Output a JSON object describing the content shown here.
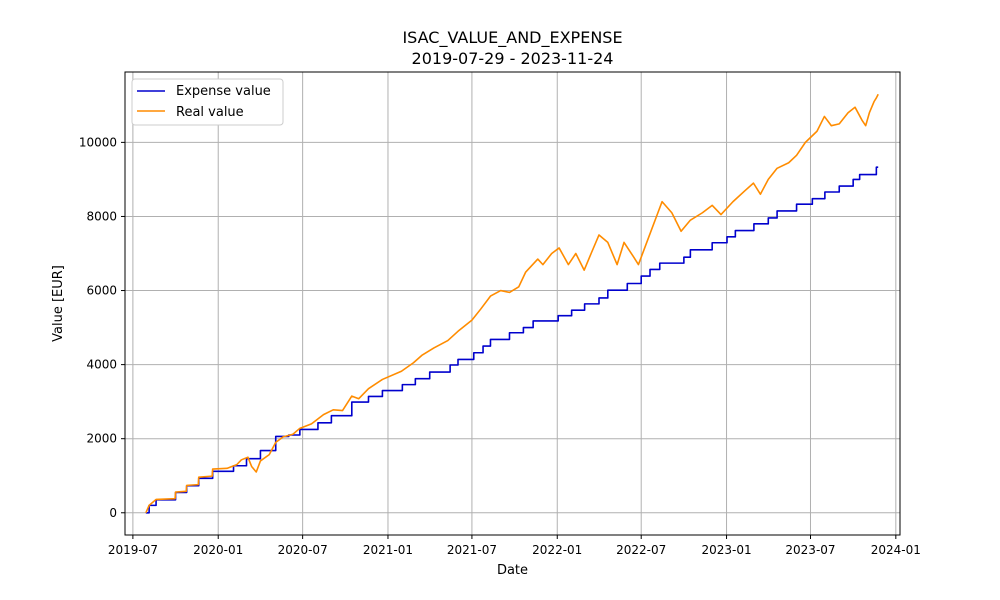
{
  "chart_data": {
    "type": "line",
    "title": "ISAC_VALUE_AND_EXPENSE",
    "subtitle": "2019-07-29 - 2023-11-24",
    "xlabel": "Date",
    "ylabel": "Value [EUR]",
    "xlim": [
      "2019-06-14",
      "2024-01-10"
    ],
    "ylim": [
      -600,
      11900
    ],
    "x_ticks": [
      "2019-07-01",
      "2020-01-01",
      "2020-07-01",
      "2021-01-01",
      "2021-07-01",
      "2022-01-01",
      "2022-07-01",
      "2023-01-01",
      "2023-07-01",
      "2024-01-01"
    ],
    "x_tick_labels": [
      "2019-07",
      "2020-01",
      "2020-07",
      "2021-01",
      "2021-07",
      "2022-01",
      "2022-07",
      "2023-01",
      "2023-07",
      "2024-01"
    ],
    "y_ticks": [
      0,
      2000,
      4000,
      6000,
      8000,
      10000
    ],
    "y_tick_labels": [
      "0",
      "2000",
      "4000",
      "6000",
      "8000",
      "10000"
    ],
    "grid": true,
    "legend_position": "top-left",
    "series": [
      {
        "name": "Expense value",
        "color": "#0000cd",
        "step": true,
        "points": [
          [
            "2019-07-29",
            0
          ],
          [
            "2019-08-05",
            200
          ],
          [
            "2019-08-20",
            350
          ],
          [
            "2019-10-01",
            550
          ],
          [
            "2019-10-25",
            730
          ],
          [
            "2019-11-20",
            930
          ],
          [
            "2019-12-20",
            1120
          ],
          [
            "2020-02-03",
            1270
          ],
          [
            "2020-03-02",
            1460
          ],
          [
            "2020-04-01",
            1680
          ],
          [
            "2020-05-04",
            2060
          ],
          [
            "2020-06-01",
            2100
          ],
          [
            "2020-06-25",
            2250
          ],
          [
            "2020-08-03",
            2430
          ],
          [
            "2020-09-01",
            2620
          ],
          [
            "2020-10-15",
            2990
          ],
          [
            "2020-11-20",
            3140
          ],
          [
            "2020-12-20",
            3300
          ],
          [
            "2021-02-01",
            3460
          ],
          [
            "2021-03-01",
            3620
          ],
          [
            "2021-04-01",
            3800
          ],
          [
            "2021-05-15",
            3990
          ],
          [
            "2021-06-01",
            4140
          ],
          [
            "2021-07-05",
            4320
          ],
          [
            "2021-07-25",
            4500
          ],
          [
            "2021-08-10",
            4680
          ],
          [
            "2021-09-20",
            4860
          ],
          [
            "2021-10-20",
            5000
          ],
          [
            "2021-11-10",
            5180
          ],
          [
            "2022-01-03",
            5320
          ],
          [
            "2022-02-01",
            5470
          ],
          [
            "2022-03-01",
            5640
          ],
          [
            "2022-04-01",
            5800
          ],
          [
            "2022-04-20",
            6010
          ],
          [
            "2022-06-01",
            6190
          ],
          [
            "2022-07-01",
            6390
          ],
          [
            "2022-07-20",
            6570
          ],
          [
            "2022-08-10",
            6740
          ],
          [
            "2022-10-01",
            6900
          ],
          [
            "2022-10-15",
            7100
          ],
          [
            "2022-12-01",
            7290
          ],
          [
            "2023-01-02",
            7450
          ],
          [
            "2023-01-20",
            7620
          ],
          [
            "2023-03-01",
            7800
          ],
          [
            "2023-04-01",
            7960
          ],
          [
            "2023-04-20",
            8150
          ],
          [
            "2023-06-01",
            8330
          ],
          [
            "2023-07-05",
            8480
          ],
          [
            "2023-08-01",
            8660
          ],
          [
            "2023-09-01",
            8820
          ],
          [
            "2023-10-01",
            9000
          ],
          [
            "2023-10-15",
            9130
          ],
          [
            "2023-11-20",
            9330
          ],
          [
            "2023-11-24",
            9330
          ]
        ]
      },
      {
        "name": "Real value",
        "color": "#ff8c00",
        "step": false,
        "points": [
          [
            "2019-07-29",
            0
          ],
          [
            "2019-08-05",
            200
          ],
          [
            "2019-08-20",
            360
          ],
          [
            "2019-09-30",
            380
          ],
          [
            "2019-10-01",
            560
          ],
          [
            "2019-10-24",
            580
          ],
          [
            "2019-10-25",
            740
          ],
          [
            "2019-11-19",
            760
          ],
          [
            "2019-11-20",
            960
          ],
          [
            "2019-12-19",
            990
          ],
          [
            "2019-12-20",
            1180
          ],
          [
            "2020-01-20",
            1200
          ],
          [
            "2020-02-10",
            1300
          ],
          [
            "2020-02-20",
            1430
          ],
          [
            "2020-03-05",
            1500
          ],
          [
            "2020-03-13",
            1250
          ],
          [
            "2020-03-23",
            1100
          ],
          [
            "2020-04-01",
            1400
          ],
          [
            "2020-04-20",
            1570
          ],
          [
            "2020-05-04",
            1900
          ],
          [
            "2020-05-20",
            2050
          ],
          [
            "2020-06-10",
            2120
          ],
          [
            "2020-06-25",
            2280
          ],
          [
            "2020-07-20",
            2400
          ],
          [
            "2020-08-15",
            2650
          ],
          [
            "2020-09-05",
            2780
          ],
          [
            "2020-09-25",
            2760
          ],
          [
            "2020-10-15",
            3150
          ],
          [
            "2020-10-30",
            3080
          ],
          [
            "2020-11-20",
            3350
          ],
          [
            "2020-12-20",
            3600
          ],
          [
            "2021-01-30",
            3820
          ],
          [
            "2021-02-25",
            4050
          ],
          [
            "2021-03-15",
            4250
          ],
          [
            "2021-04-10",
            4450
          ],
          [
            "2021-05-10",
            4650
          ],
          [
            "2021-06-01",
            4900
          ],
          [
            "2021-07-01",
            5200
          ],
          [
            "2021-07-20",
            5500
          ],
          [
            "2021-08-10",
            5850
          ],
          [
            "2021-09-01",
            6000
          ],
          [
            "2021-09-20",
            5950
          ],
          [
            "2021-10-10",
            6100
          ],
          [
            "2021-10-25",
            6500
          ],
          [
            "2021-11-20",
            6850
          ],
          [
            "2021-12-01",
            6700
          ],
          [
            "2021-12-20",
            7000
          ],
          [
            "2022-01-05",
            7150
          ],
          [
            "2022-01-25",
            6700
          ],
          [
            "2022-02-10",
            7000
          ],
          [
            "2022-02-28",
            6550
          ],
          [
            "2022-03-15",
            7000
          ],
          [
            "2022-04-01",
            7500
          ],
          [
            "2022-04-20",
            7300
          ],
          [
            "2022-05-10",
            6700
          ],
          [
            "2022-05-25",
            7300
          ],
          [
            "2022-06-15",
            6900
          ],
          [
            "2022-06-25",
            6700
          ],
          [
            "2022-07-10",
            7200
          ],
          [
            "2022-08-15",
            8400
          ],
          [
            "2022-09-05",
            8100
          ],
          [
            "2022-09-25",
            7600
          ],
          [
            "2022-10-15",
            7900
          ],
          [
            "2022-11-10",
            8100
          ],
          [
            "2022-12-01",
            8300
          ],
          [
            "2022-12-20",
            8050
          ],
          [
            "2023-01-15",
            8400
          ],
          [
            "2023-02-10",
            8700
          ],
          [
            "2023-02-28",
            8900
          ],
          [
            "2023-03-15",
            8600
          ],
          [
            "2023-04-01",
            9000
          ],
          [
            "2023-04-20",
            9300
          ],
          [
            "2023-05-15",
            9450
          ],
          [
            "2023-06-01",
            9650
          ],
          [
            "2023-06-20",
            10000
          ],
          [
            "2023-07-15",
            10300
          ],
          [
            "2023-07-31",
            10700
          ],
          [
            "2023-08-15",
            10450
          ],
          [
            "2023-09-01",
            10500
          ],
          [
            "2023-09-20",
            10800
          ],
          [
            "2023-10-05",
            10950
          ],
          [
            "2023-10-20",
            10600
          ],
          [
            "2023-10-28",
            10450
          ],
          [
            "2023-11-05",
            10800
          ],
          [
            "2023-11-15",
            11100
          ],
          [
            "2023-11-20",
            11200
          ],
          [
            "2023-11-24",
            11300
          ]
        ]
      }
    ]
  }
}
